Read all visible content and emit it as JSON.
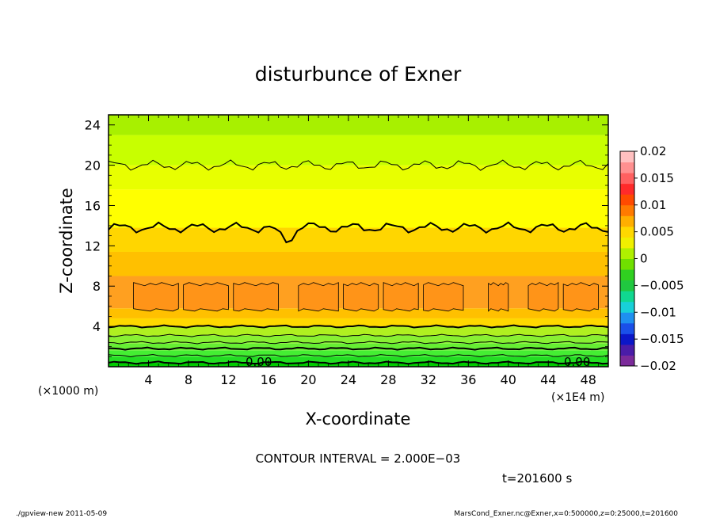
{
  "chart_data": {
    "type": "heatmap",
    "title": "disturbunce of Exner",
    "xlabel": "X-coordinate",
    "ylabel": "Z-coordinate",
    "x_unit": "(×1E4 m)",
    "y_unit": "(×1000 m)",
    "xlim": [
      0,
      50
    ],
    "ylim": [
      0,
      25
    ],
    "x_ticks": [
      4,
      8,
      12,
      16,
      20,
      24,
      28,
      32,
      36,
      40,
      44,
      48
    ],
    "y_ticks": [
      4,
      8,
      12,
      16,
      20,
      24
    ],
    "colorbar": {
      "ticks": [
        0.02,
        0.015,
        0.01,
        0.005,
        0,
        -0.005,
        -0.01,
        -0.015,
        -0.02
      ],
      "tick_labels": [
        "0.02",
        "0.015",
        "0.01",
        "0.005",
        "0",
        "−0.005",
        "−0.01",
        "−0.015",
        "−0.02"
      ],
      "range": [
        -0.02,
        0.02
      ],
      "colors": [
        "#7b2a9a",
        "#4a1ca8",
        "#0b17c8",
        "#1a50e8",
        "#1e90f0",
        "#18d0d8",
        "#10d890",
        "#20c840",
        "#30d020",
        "#70e000",
        "#b0f000",
        "#f0f000",
        "#ffd800",
        "#ffae00",
        "#ff7a00",
        "#ff4a00",
        "#ff2a2a",
        "#ff6060",
        "#ff9090",
        "#ffc0c0"
      ]
    },
    "bands": [
      {
        "z_bottom": 0.0,
        "z_top": 0.4,
        "value": 0.0,
        "color": "#00cc00"
      },
      {
        "z_bottom": 0.4,
        "z_top": 1.0,
        "value": 0.001,
        "color": "#22dd22"
      },
      {
        "z_bottom": 1.0,
        "z_top": 1.6,
        "value": 0.002,
        "color": "#44ee33"
      },
      {
        "z_bottom": 1.6,
        "z_top": 2.3,
        "value": 0.003,
        "color": "#66ee33"
      },
      {
        "z_bottom": 2.3,
        "z_top": 3.1,
        "value": 0.004,
        "color": "#88f033"
      },
      {
        "z_bottom": 3.1,
        "z_top": 4.0,
        "value": 0.005,
        "color": "#b0f020"
      },
      {
        "z_bottom": 4.0,
        "z_top": 4.8,
        "value": 0.007,
        "color": "#ffd800"
      },
      {
        "z_bottom": 4.8,
        "z_top": 5.8,
        "value": 0.008,
        "color": "#ffc000"
      },
      {
        "z_bottom": 5.8,
        "z_top": 9.0,
        "value": 0.0095,
        "color": "#ffa020"
      },
      {
        "z_bottom": 9.0,
        "z_top": 11.4,
        "value": 0.009,
        "color": "#ffc000"
      },
      {
        "z_bottom": 11.4,
        "z_top": 13.8,
        "value": 0.008,
        "color": "#ffd600"
      },
      {
        "z_bottom": 13.8,
        "z_top": 17.6,
        "value": 0.006,
        "color": "#ffff00"
      },
      {
        "z_bottom": 17.6,
        "z_top": 20.0,
        "value": 0.005,
        "color": "#e8ff00"
      },
      {
        "z_bottom": 20.0,
        "z_top": 23.0,
        "value": 0.004,
        "color": "#c8ff00"
      },
      {
        "z_bottom": 23.0,
        "z_top": 25.0,
        "value": 0.0035,
        "color": "#a8f000"
      }
    ],
    "contours": [
      {
        "z": 0.4,
        "value": 0.0,
        "bold": true,
        "label": "0.00"
      },
      {
        "z": 1.1,
        "value": 0.001,
        "bold": false
      },
      {
        "z": 1.8,
        "value": 0.002,
        "bold": true
      },
      {
        "z": 2.4,
        "value": 0.003,
        "bold": false
      },
      {
        "z": 3.1,
        "value": 0.004,
        "bold": false
      },
      {
        "z": 4.0,
        "value": 0.006,
        "bold": true
      },
      {
        "z": 13.8,
        "value": 0.006,
        "bold": true
      },
      {
        "z": 20.0,
        "value": 0.004,
        "bold": false
      }
    ],
    "annotations": {
      "contour_interval": "CONTOUR INTERVAL = 2.000E−03",
      "time": "t=201600 s",
      "contour_label": "0.00"
    }
  },
  "footer": {
    "left": "./gpview-new   2011-05-09",
    "right": "MarsCond_Exner.nc@Exner,x=0:500000,z=0:25000,t=201600"
  }
}
